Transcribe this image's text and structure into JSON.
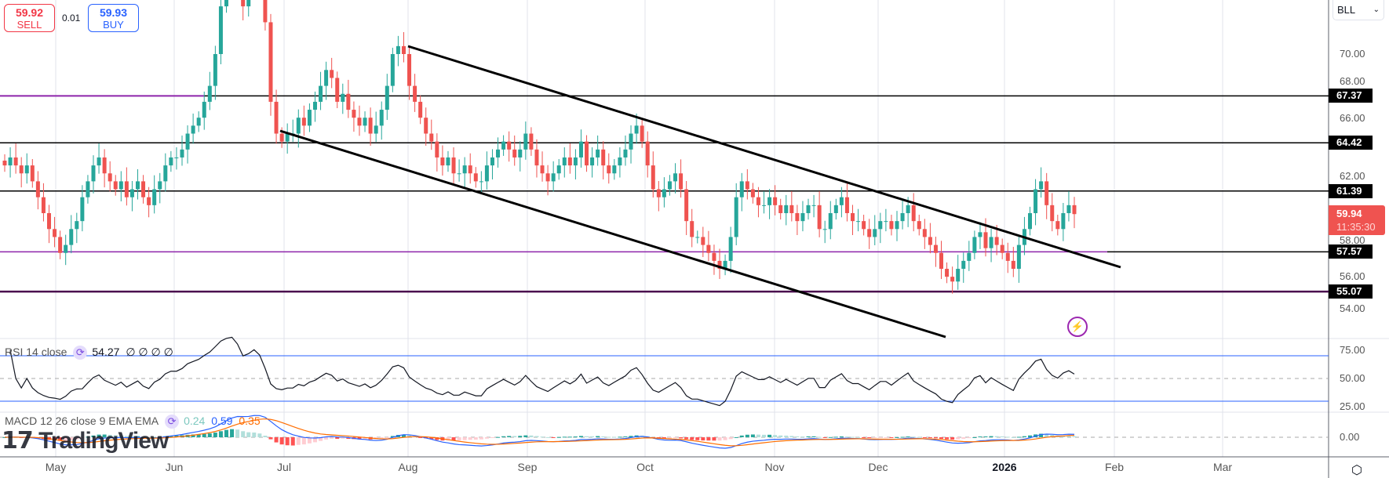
{
  "trade": {
    "sell_price": "59.92",
    "sell_label": "SELL",
    "spread": "0.01",
    "buy_price": "59.93",
    "buy_label": "BUY"
  },
  "symbol": "BLL",
  "colors": {
    "up": "#26a69a",
    "down": "#ef5350",
    "level": "#000000",
    "purple": "#8e24aa",
    "rsi": "#131722",
    "rsi_band": "#2962ff",
    "macd": "#2962ff",
    "signal": "#ff6d00"
  },
  "price_axis": [
    "70.00",
    "68.00",
    "66.00",
    "62.00",
    "58.00",
    "56.00",
    "54.00"
  ],
  "levels": [
    {
      "value": 67.37,
      "label": "67.37"
    },
    {
      "value": 64.42,
      "label": "64.42"
    },
    {
      "value": 61.39,
      "label": "61.39"
    },
    {
      "value": 57.57,
      "label": "57.57"
    },
    {
      "value": 55.07,
      "label": "55.07"
    }
  ],
  "last": {
    "price": "59.94",
    "countdown": "11:35:30"
  },
  "rsi": {
    "title": "RSI 14 close",
    "value": "54.27",
    "extras": "∅ ∅ ∅ ∅",
    "axis": [
      "75.00",
      "50.00",
      "25.00"
    ],
    "upper": 70,
    "mid": 50,
    "lower": 30
  },
  "macd": {
    "title": "MACD 12 26 close 9 EMA EMA",
    "hist": "0.24",
    "macd": "0.59",
    "signal": "0.35",
    "axis": [
      "0.00"
    ]
  },
  "time_axis": [
    "May",
    "Jun",
    "Jul",
    "Aug",
    "Sep",
    "Oct",
    "Nov",
    "Dec",
    "2026",
    "Feb",
    "Mar"
  ],
  "watermark": "TradingView",
  "chart_data": {
    "type": "candlestick",
    "symbol": "BLL",
    "ylim": [
      53,
      76
    ],
    "closes": [
      63,
      63.5,
      63,
      62.5,
      63,
      62,
      61,
      60,
      59,
      58.5,
      57.5,
      58,
      59,
      59.5,
      61,
      62,
      63,
      63.5,
      62.5,
      62,
      61.5,
      62,
      61,
      61.5,
      62,
      61,
      60.5,
      61.5,
      62,
      63,
      63.5,
      63.5,
      64,
      65,
      65.5,
      66,
      67,
      68,
      70,
      73,
      75,
      76,
      75,
      73,
      74,
      76,
      75,
      72,
      67,
      65,
      64.5,
      65,
      65,
      66,
      65.5,
      66.5,
      67,
      68,
      69,
      68.5,
      67,
      67.5,
      66.5,
      66,
      65.5,
      66,
      65,
      65.5,
      66.5,
      68,
      70,
      70.5,
      70,
      68,
      67,
      66,
      65,
      64.5,
      63.5,
      63,
      63.5,
      62.5,
      62.5,
      63,
      62.5,
      62,
      62,
      63,
      63.5,
      64,
      64.5,
      64,
      63.5,
      64,
      65,
      64,
      63,
      62.5,
      62,
      62.5,
      63,
      63.5,
      63,
      63.5,
      64.5,
      63,
      63.5,
      64,
      63,
      62.5,
      63,
      63.5,
      64,
      65,
      65.5,
      64.5,
      63,
      61.5,
      61,
      61.5,
      62,
      62.5,
      61.5,
      59.5,
      58.5,
      58.5,
      58,
      57.5,
      57,
      56.5,
      57,
      58.5,
      61,
      62,
      61.5,
      61,
      60.5,
      60.5,
      61,
      60.5,
      60,
      60.5,
      60,
      59.5,
      60,
      60.5,
      60.5,
      59,
      59,
      60,
      60.5,
      61,
      60,
      59.5,
      59.5,
      59,
      58.5,
      59,
      59.5,
      59.5,
      59,
      59.5,
      60,
      60.5,
      59.5,
      59,
      58.5,
      58,
      57.5,
      56.5,
      56,
      55.7,
      56.5,
      57,
      57.5,
      58.5,
      58.8,
      57.8,
      58.5,
      58,
      57.5,
      57,
      56.5,
      58,
      59,
      60,
      61.5,
      62,
      60.5,
      59.5,
      59,
      60,
      60.5,
      59.94
    ],
    "trendlines": [
      {
        "from": [
          "Aug",
          "70.5"
        ],
        "to": [
          "Feb",
          "56.6"
        ]
      },
      {
        "from": [
          "Jul",
          "65.0"
        ],
        "to": [
          "Jan",
          "53.0"
        ]
      }
    ]
  }
}
